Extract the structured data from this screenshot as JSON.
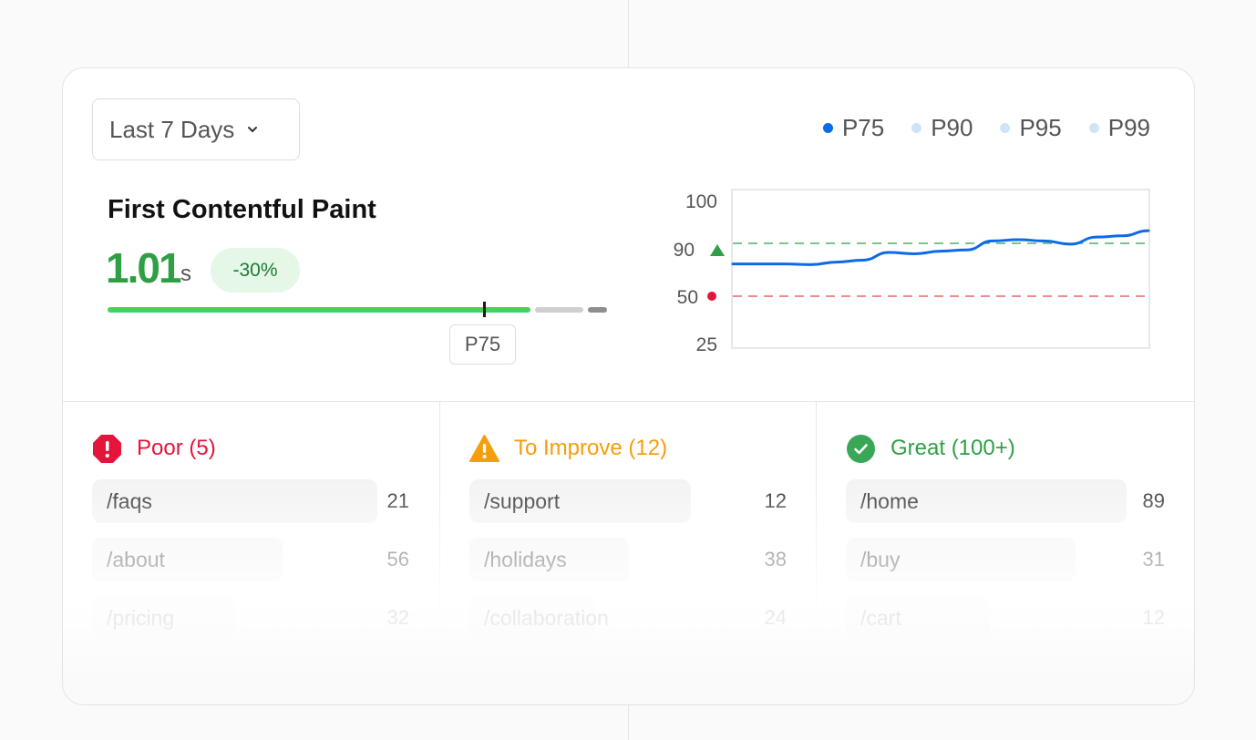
{
  "dropdown": {
    "label": "Last 7 Days"
  },
  "legend": [
    {
      "label": "P75",
      "color": "#0d6ae6"
    },
    {
      "label": "P90",
      "color": "#cfe4f9"
    },
    {
      "label": "P95",
      "color": "#cfe4f9"
    },
    {
      "label": "P99",
      "color": "#cfe4f9"
    }
  ],
  "metric": {
    "title": "First Contentful Paint",
    "value": "1.01",
    "unit": "s",
    "delta": "-30%",
    "marker_label": "P75",
    "good_color": "#44d35a"
  },
  "chart_data": {
    "type": "line",
    "y_ticks": [
      "100",
      "90",
      "50",
      "25"
    ],
    "thresholds": [
      {
        "value": 90,
        "color": "#2ea043",
        "marker": "triangle-up-icon"
      },
      {
        "value": 50,
        "color": "#e5484d",
        "marker": "dot-icon"
      }
    ],
    "series": [
      {
        "name": "P75",
        "color": "#0d6ae6",
        "values": [
          74,
          74,
          74,
          73.5,
          75.5,
          77,
          83,
          82,
          84,
          85,
          92,
          93,
          92,
          89.5,
          95,
          96,
          100
        ]
      }
    ],
    "grid": false
  },
  "groups": [
    {
      "label": "Poor (5)",
      "color": "#e5143a",
      "icon": "alert-octagon-icon",
      "rows": [
        {
          "path": "/faqs",
          "count": "21"
        },
        {
          "path": "/about",
          "count": "56"
        },
        {
          "path": "/pricing",
          "count": "32"
        }
      ]
    },
    {
      "label": "To Improve (12)",
      "color": "#f59e0b",
      "icon": "warning-triangle-icon",
      "rows": [
        {
          "path": "/support",
          "count": "12"
        },
        {
          "path": "/holidays",
          "count": "38"
        },
        {
          "path": "/collaboration",
          "count": "24"
        }
      ]
    },
    {
      "label": "Great (100+)",
      "color": "#2ea043",
      "icon": "check-circle-icon",
      "rows": [
        {
          "path": "/home",
          "count": "89"
        },
        {
          "path": "/buy",
          "count": "31"
        },
        {
          "path": "/cart",
          "count": "12"
        }
      ]
    }
  ]
}
